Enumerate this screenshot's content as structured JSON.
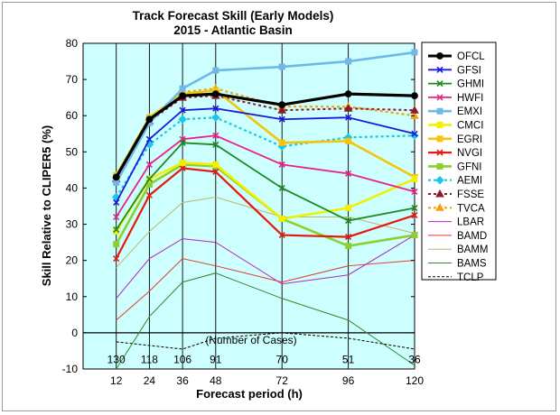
{
  "chart_data": {
    "type": "line",
    "title": "Track Forecast Skill (Early Models)",
    "subtitle": "2015 - Atlantic Basin",
    "xlabel": "Forecast period (h)",
    "ylabel": "Skill Relative to CLIPER5 (%)",
    "x": [
      12,
      24,
      36,
      48,
      72,
      96,
      120
    ],
    "xlim": [
      0,
      120
    ],
    "ylim": [
      -10,
      80
    ],
    "yticks": [
      -10,
      0,
      10,
      20,
      30,
      40,
      50,
      60,
      70,
      80
    ],
    "legend_position": "outside-right",
    "annotation": "(Number of Cases)",
    "case_counts": [
      "130",
      "118",
      "106",
      "91",
      "70",
      "51",
      "36"
    ],
    "plot_background": "#ccfffd",
    "series": [
      {
        "name": "OFCL",
        "color": "#000000",
        "width": 3.2,
        "marker": "circle",
        "values": [
          43,
          59,
          65.5,
          66,
          63,
          66,
          65.5
        ]
      },
      {
        "name": "GFSI",
        "color": "#1a1adb",
        "width": 1.8,
        "marker": "x",
        "values": [
          36,
          53.5,
          61.5,
          62,
          59,
          59.5,
          55
        ]
      },
      {
        "name": "GHMI",
        "color": "#1f8a1f",
        "width": 1.8,
        "marker": "x",
        "values": [
          28.5,
          42.5,
          52.5,
          52,
          40,
          31,
          34.5
        ]
      },
      {
        "name": "HWFI",
        "color": "#e8238a",
        "width": 1.8,
        "marker": "x",
        "values": [
          32,
          46.5,
          53.5,
          54.5,
          46.5,
          44,
          39
        ]
      },
      {
        "name": "EMXI",
        "color": "#6fb8e8",
        "width": 2.6,
        "marker": "square",
        "values": [
          41.5,
          58,
          67.5,
          72.5,
          73.5,
          75,
          77.5
        ]
      },
      {
        "name": "CMCI",
        "color": "#f0f000",
        "width": 2.6,
        "marker": "square",
        "values": [
          28,
          42.5,
          47,
          46.5,
          31.5,
          34.5,
          42.5
        ]
      },
      {
        "name": "EGRI",
        "color": "#f6c40a",
        "width": 2.6,
        "marker": "square",
        "values": [
          43.5,
          59.5,
          66,
          67,
          52.5,
          53,
          43
        ]
      },
      {
        "name": "NVGI",
        "color": "#e31a0f",
        "width": 2.2,
        "marker": "x",
        "values": [
          20.5,
          38,
          45.5,
          44.5,
          27,
          26.5,
          32.5
        ]
      },
      {
        "name": "GFNI",
        "color": "#8ccf2e",
        "width": 2.6,
        "marker": "square",
        "values": [
          24.5,
          41,
          46.5,
          46,
          31.5,
          24,
          27
        ]
      },
      {
        "name": "AEMI",
        "color": "#19c7e8",
        "width": 2.2,
        "dash": "3,3",
        "marker": "diamond",
        "values": [
          37.5,
          52,
          59,
          59.5,
          51.5,
          54,
          54.5
        ]
      },
      {
        "name": "FSSE",
        "color": "#8a1a2a",
        "width": 2.0,
        "dash": "3,3",
        "marker": "triangle",
        "values": [
          42.5,
          58.5,
          65,
          65.5,
          61.5,
          62,
          61.5
        ]
      },
      {
        "name": "TVCA",
        "color": "#f2a20a",
        "width": 2.2,
        "dash": "3,3",
        "marker": "triangle",
        "values": [
          43.5,
          59.5,
          66.5,
          67.5,
          62.5,
          62.5,
          60
        ]
      },
      {
        "name": "LBAR",
        "color": "#bb22bb",
        "width": 1.0,
        "marker": "none",
        "values": [
          9.5,
          20.5,
          26,
          25,
          13.5,
          16,
          27
        ]
      },
      {
        "name": "BAMD",
        "color": "#e3382d",
        "width": 1.0,
        "marker": "none",
        "values": [
          3.5,
          11.5,
          20.5,
          18.5,
          14,
          18.5,
          20
        ]
      },
      {
        "name": "BAMM",
        "color": "#c2b472",
        "width": 1.0,
        "marker": "none",
        "values": [
          18,
          28,
          36,
          37.5,
          32,
          32,
          27.5
        ]
      },
      {
        "name": "BAMS",
        "color": "#2e8b2e",
        "width": 1.0,
        "marker": "none",
        "values": [
          -10,
          4.5,
          14,
          16.5,
          9.5,
          3.5,
          -9
        ]
      },
      {
        "name": "TCLP",
        "color": "#000000",
        "width": 1.0,
        "dash": "3,2",
        "marker": "none",
        "values": [
          -2.5,
          -3.5,
          -4.5,
          -1.5,
          0,
          -1.5,
          -4.5
        ]
      }
    ]
  }
}
